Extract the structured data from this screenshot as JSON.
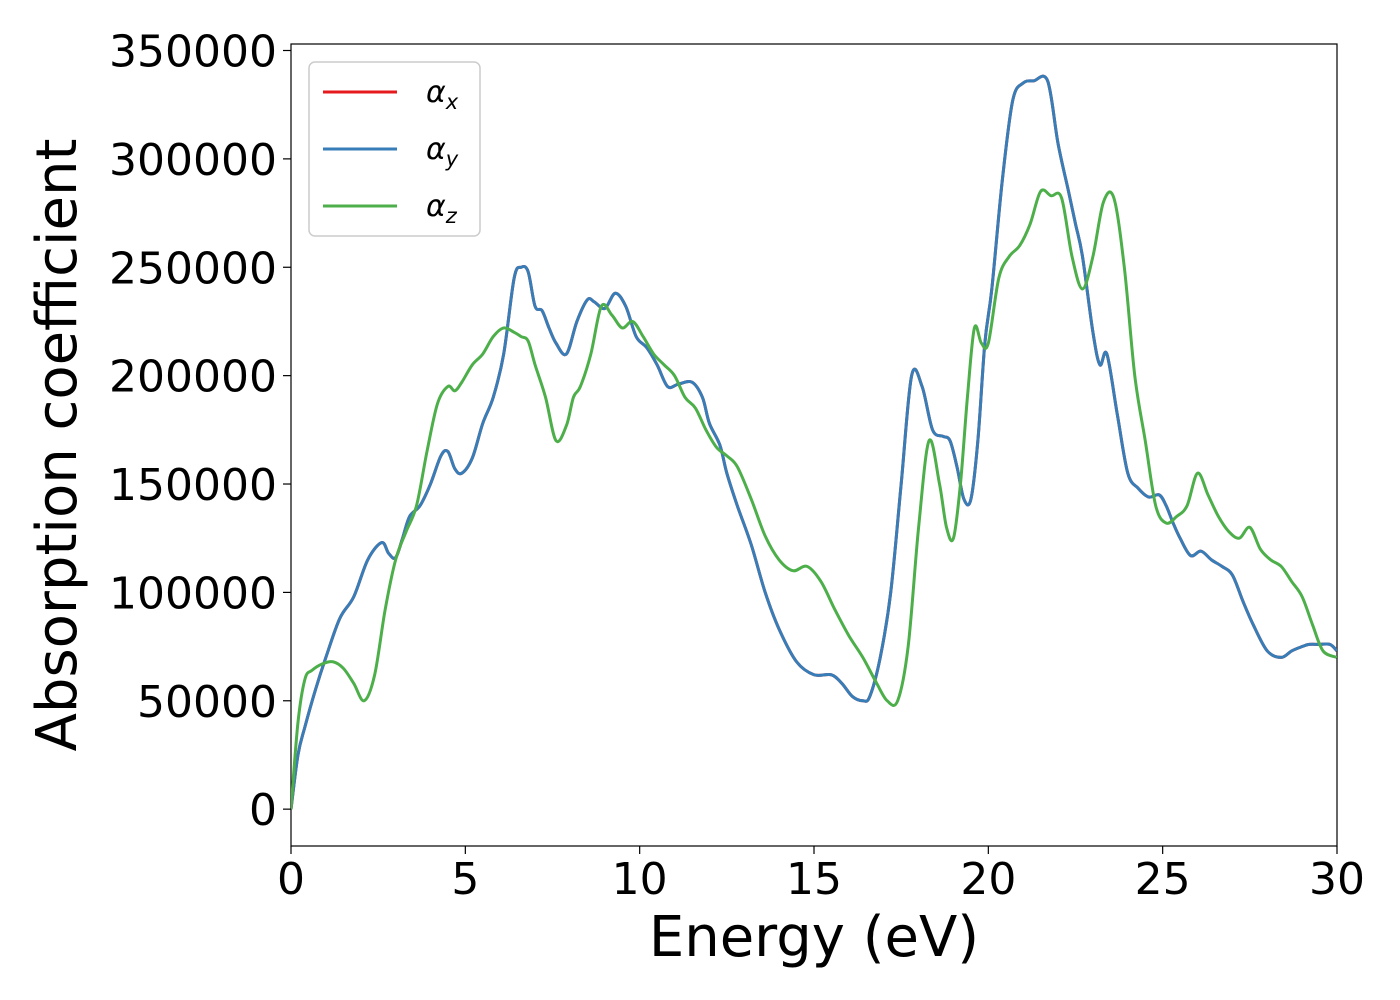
{
  "chart_data": {
    "type": "line",
    "xlabel": "Energy (eV)",
    "ylabel": "Absorption coefficient",
    "xlim": [
      0,
      30
    ],
    "ylim": [
      -17000,
      353000
    ],
    "xticks": [
      0,
      5,
      10,
      15,
      20,
      25,
      30
    ],
    "xtick_labels": [
      "0",
      "5",
      "10",
      "15",
      "20",
      "25",
      "30"
    ],
    "yticks": [
      0,
      50000,
      100000,
      150000,
      200000,
      250000,
      300000,
      350000
    ],
    "ytick_labels": [
      "0",
      "50000",
      "100000",
      "150000",
      "200000",
      "250000",
      "300000",
      "350000"
    ],
    "grid": false,
    "legend_position": "top-left",
    "series": [
      {
        "name": "α",
        "subscript": "x",
        "color": "#e41a1c",
        "x": [
          0,
          0.2,
          0.4,
          0.7,
          1.0,
          1.4,
          1.8,
          2.2,
          2.6,
          2.8,
          3.0,
          3.2,
          3.4,
          3.7,
          4.0,
          4.3,
          4.5,
          4.7,
          4.9,
          5.2,
          5.5,
          5.8,
          6.1,
          6.4,
          6.6,
          6.8,
          7.0,
          7.2,
          7.4,
          7.6,
          7.9,
          8.2,
          8.5,
          8.7,
          9.0,
          9.3,
          9.6,
          9.9,
          10.2,
          10.5,
          10.8,
          11.1,
          11.5,
          11.8,
          12.0,
          12.3,
          12.5,
          12.8,
          13.2,
          13.6,
          14.0,
          14.5,
          15.0,
          15.5,
          15.8,
          16.1,
          16.4,
          16.6,
          16.9,
          17.2,
          17.5,
          17.8,
          18.1,
          18.4,
          18.7,
          18.9,
          19.1,
          19.3,
          19.5,
          19.7,
          19.9,
          20.1,
          20.4,
          20.7,
          21.0,
          21.3,
          21.7,
          22.0,
          22.3,
          22.5,
          22.7,
          23.0,
          23.2,
          23.4,
          23.7,
          24.0,
          24.3,
          24.6,
          24.9,
          25.1,
          25.3,
          25.5,
          25.8,
          26.1,
          26.4,
          26.7,
          27.0,
          27.3,
          27.6,
          28.0,
          28.4,
          28.7,
          29.0,
          29.2,
          29.5,
          29.8,
          30.0
        ],
        "y": [
          0,
          25000,
          38000,
          55000,
          70000,
          88000,
          98000,
          115000,
          123000,
          118000,
          116000,
          125000,
          135000,
          140000,
          150000,
          163000,
          165000,
          157000,
          155000,
          162000,
          178000,
          190000,
          210000,
          245000,
          250000,
          248000,
          232000,
          230000,
          222000,
          215000,
          210000,
          225000,
          235000,
          234000,
          231000,
          238000,
          232000,
          218000,
          213000,
          205000,
          195000,
          196000,
          197000,
          190000,
          178000,
          168000,
          155000,
          140000,
          122000,
          100000,
          83000,
          68000,
          62000,
          62000,
          58000,
          52000,
          50000,
          52000,
          70000,
          100000,
          150000,
          200000,
          195000,
          175000,
          172000,
          170000,
          158000,
          143000,
          143000,
          170000,
          215000,
          240000,
          290000,
          327000,
          335000,
          336000,
          336000,
          307000,
          285000,
          270000,
          255000,
          220000,
          205000,
          210000,
          182000,
          155000,
          148000,
          144000,
          145000,
          140000,
          132000,
          125000,
          117000,
          119000,
          115000,
          112000,
          108000,
          96000,
          85000,
          73000,
          70000,
          73000,
          75000,
          76000,
          76000,
          76000,
          73000
        ]
      },
      {
        "name": "α",
        "subscript": "y",
        "color": "#377eb8",
        "x": [
          0,
          0.2,
          0.4,
          0.7,
          1.0,
          1.4,
          1.8,
          2.2,
          2.6,
          2.8,
          3.0,
          3.2,
          3.4,
          3.7,
          4.0,
          4.3,
          4.5,
          4.7,
          4.9,
          5.2,
          5.5,
          5.8,
          6.1,
          6.4,
          6.6,
          6.8,
          7.0,
          7.2,
          7.4,
          7.6,
          7.9,
          8.2,
          8.5,
          8.7,
          9.0,
          9.3,
          9.6,
          9.9,
          10.2,
          10.5,
          10.8,
          11.1,
          11.5,
          11.8,
          12.0,
          12.3,
          12.5,
          12.8,
          13.2,
          13.6,
          14.0,
          14.5,
          15.0,
          15.5,
          15.8,
          16.1,
          16.4,
          16.6,
          16.9,
          17.2,
          17.5,
          17.8,
          18.1,
          18.4,
          18.7,
          18.9,
          19.1,
          19.3,
          19.5,
          19.7,
          19.9,
          20.1,
          20.4,
          20.7,
          21.0,
          21.3,
          21.7,
          22.0,
          22.3,
          22.5,
          22.7,
          23.0,
          23.2,
          23.4,
          23.7,
          24.0,
          24.3,
          24.6,
          24.9,
          25.1,
          25.3,
          25.5,
          25.8,
          26.1,
          26.4,
          26.7,
          27.0,
          27.3,
          27.6,
          28.0,
          28.4,
          28.7,
          29.0,
          29.2,
          29.5,
          29.8,
          30.0
        ],
        "y": [
          0,
          25000,
          38000,
          55000,
          70000,
          88000,
          98000,
          115000,
          123000,
          118000,
          116000,
          125000,
          135000,
          140000,
          150000,
          163000,
          165000,
          157000,
          155000,
          162000,
          178000,
          190000,
          210000,
          245000,
          250000,
          248000,
          232000,
          230000,
          222000,
          215000,
          210000,
          225000,
          235000,
          234000,
          231000,
          238000,
          232000,
          218000,
          213000,
          205000,
          195000,
          196000,
          197000,
          190000,
          178000,
          168000,
          155000,
          140000,
          122000,
          100000,
          83000,
          68000,
          62000,
          62000,
          58000,
          52000,
          50000,
          52000,
          70000,
          100000,
          150000,
          200000,
          195000,
          175000,
          172000,
          170000,
          158000,
          143000,
          143000,
          170000,
          215000,
          240000,
          290000,
          327000,
          335000,
          336000,
          336000,
          307000,
          285000,
          270000,
          255000,
          220000,
          205000,
          210000,
          182000,
          155000,
          148000,
          144000,
          145000,
          140000,
          132000,
          125000,
          117000,
          119000,
          115000,
          112000,
          108000,
          96000,
          85000,
          73000,
          70000,
          73000,
          75000,
          76000,
          76000,
          76000,
          73000
        ]
      },
      {
        "name": "α",
        "subscript": "z",
        "color": "#4daf4a",
        "x": [
          0,
          0.2,
          0.4,
          0.6,
          0.9,
          1.2,
          1.5,
          1.8,
          2.1,
          2.4,
          2.7,
          3.0,
          3.3,
          3.6,
          3.9,
          4.2,
          4.5,
          4.7,
          4.9,
          5.2,
          5.5,
          5.8,
          6.1,
          6.4,
          6.6,
          6.8,
          7.0,
          7.3,
          7.6,
          7.9,
          8.1,
          8.3,
          8.6,
          8.9,
          9.2,
          9.5,
          9.8,
          10.1,
          10.4,
          10.7,
          11.0,
          11.3,
          11.6,
          11.9,
          12.2,
          12.5,
          12.8,
          13.2,
          13.6,
          14.0,
          14.4,
          14.8,
          15.2,
          15.6,
          16.0,
          16.4,
          16.8,
          17.1,
          17.4,
          17.7,
          18.0,
          18.3,
          18.6,
          18.8,
          19.0,
          19.2,
          19.4,
          19.6,
          19.8,
          20.0,
          20.3,
          20.6,
          20.9,
          21.2,
          21.5,
          21.8,
          22.1,
          22.4,
          22.7,
          23.0,
          23.3,
          23.6,
          23.9,
          24.2,
          24.5,
          24.8,
          25.1,
          25.4,
          25.7,
          26.0,
          26.3,
          26.6,
          26.9,
          27.2,
          27.5,
          27.8,
          28.1,
          28.4,
          28.7,
          29.0,
          29.3,
          29.6,
          30.0
        ],
        "y": [
          0,
          40000,
          60000,
          64000,
          67000,
          68000,
          65000,
          58000,
          50000,
          62000,
          92000,
          115000,
          128000,
          140000,
          165000,
          187000,
          195000,
          193000,
          197000,
          205000,
          210000,
          218000,
          222000,
          220000,
          218000,
          216000,
          205000,
          190000,
          170000,
          177000,
          190000,
          195000,
          210000,
          232000,
          228000,
          222000,
          225000,
          218000,
          210000,
          205000,
          200000,
          190000,
          185000,
          175000,
          167000,
          163000,
          158000,
          143000,
          126000,
          115000,
          110000,
          112000,
          105000,
          92000,
          80000,
          70000,
          58000,
          50000,
          50000,
          75000,
          130000,
          170000,
          150000,
          130000,
          125000,
          150000,
          190000,
          222000,
          215000,
          215000,
          245000,
          255000,
          260000,
          270000,
          285000,
          283000,
          282000,
          255000,
          240000,
          255000,
          280000,
          282000,
          250000,
          200000,
          170000,
          140000,
          132000,
          135000,
          140000,
          155000,
          145000,
          135000,
          128000,
          125000,
          130000,
          120000,
          115000,
          112000,
          105000,
          98000,
          85000,
          73000,
          70000
        ]
      }
    ]
  }
}
